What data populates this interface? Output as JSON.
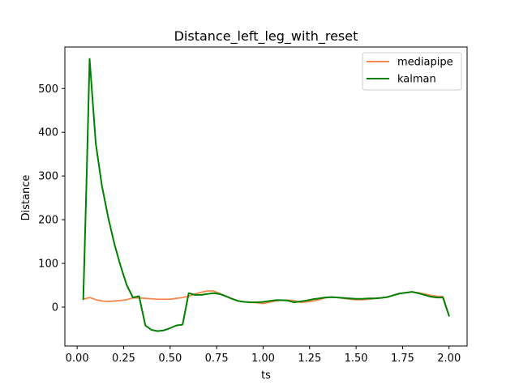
{
  "chart_data": {
    "type": "line",
    "title": "Distance_left_leg_with_reset",
    "xlabel": "ts",
    "ylabel": "Distance",
    "xlim": [
      -0.066,
      2.097
    ],
    "ylim": [
      -89,
      595
    ],
    "xticks": [
      0.0,
      0.25,
      0.5,
      0.75,
      1.0,
      1.25,
      1.5,
      1.75,
      2.0
    ],
    "xtick_labels": [
      "0.00",
      "0.25",
      "0.50",
      "0.75",
      "1.00",
      "1.25",
      "1.50",
      "1.75",
      "2.00"
    ],
    "yticks": [
      0,
      100,
      200,
      300,
      400,
      500
    ],
    "ytick_labels": [
      "0",
      "100",
      "200",
      "300",
      "400",
      "500"
    ],
    "grid": false,
    "legend_position": "upper right",
    "series": [
      {
        "name": "mediapipe",
        "color": "#f4874d",
        "x": [
          0.033,
          0.067,
          0.1,
          0.133,
          0.167,
          0.2,
          0.233,
          0.267,
          0.3,
          0.333,
          0.367,
          0.4,
          0.433,
          0.467,
          0.5,
          0.533,
          0.567,
          0.6,
          0.633,
          0.667,
          0.7,
          0.733,
          0.767,
          0.8,
          0.833,
          0.867,
          0.9,
          0.933,
          0.967,
          1.0,
          1.033,
          1.067,
          1.1,
          1.133,
          1.167,
          1.2,
          1.233,
          1.267,
          1.3,
          1.333,
          1.367,
          1.4,
          1.433,
          1.467,
          1.5,
          1.533,
          1.567,
          1.6,
          1.633,
          1.667,
          1.7,
          1.733,
          1.767,
          1.8,
          1.833,
          1.867,
          1.9,
          1.933,
          1.967,
          2.0
        ],
        "y": [
          18,
          22,
          17,
          14,
          13,
          14,
          15,
          17,
          21,
          21,
          20,
          19,
          18,
          18,
          18,
          20,
          22,
          25,
          30,
          34,
          37,
          37,
          31,
          25,
          19,
          14,
          12,
          11,
          10,
          8,
          11,
          14,
          16,
          16,
          15,
          11,
          12,
          14,
          17,
          21,
          23,
          22,
          20,
          18,
          17,
          17,
          18,
          20,
          21,
          23,
          27,
          31,
          33,
          35,
          33,
          30,
          27,
          25,
          24,
          -20
        ]
      },
      {
        "name": "kalman",
        "color": "#008000",
        "x": [
          0.033,
          0.05,
          0.067,
          0.1,
          0.133,
          0.167,
          0.2,
          0.233,
          0.267,
          0.3,
          0.333,
          0.367,
          0.4,
          0.433,
          0.467,
          0.5,
          0.533,
          0.567,
          0.6,
          0.633,
          0.667,
          0.7,
          0.733,
          0.767,
          0.8,
          0.833,
          0.867,
          0.9,
          0.933,
          0.967,
          1.0,
          1.033,
          1.067,
          1.1,
          1.133,
          1.167,
          1.2,
          1.233,
          1.267,
          1.3,
          1.333,
          1.367,
          1.4,
          1.433,
          1.467,
          1.5,
          1.533,
          1.567,
          1.6,
          1.633,
          1.667,
          1.7,
          1.733,
          1.767,
          1.8,
          1.833,
          1.867,
          1.9,
          1.933,
          1.967,
          2.0
        ],
        "y": [
          18,
          280,
          568,
          375,
          278,
          205,
          145,
          95,
          50,
          22,
          25,
          -42,
          -52,
          -55,
          -53,
          -48,
          -42,
          -40,
          32,
          28,
          28,
          30,
          32,
          30,
          25,
          19,
          14,
          12,
          11,
          11,
          12,
          14,
          16,
          16,
          15,
          11,
          13,
          15,
          18,
          20,
          22,
          23,
          22,
          21,
          20,
          19,
          19,
          20,
          20,
          21,
          23,
          27,
          31,
          33,
          35,
          32,
          28,
          24,
          22,
          22,
          -20
        ]
      }
    ]
  }
}
